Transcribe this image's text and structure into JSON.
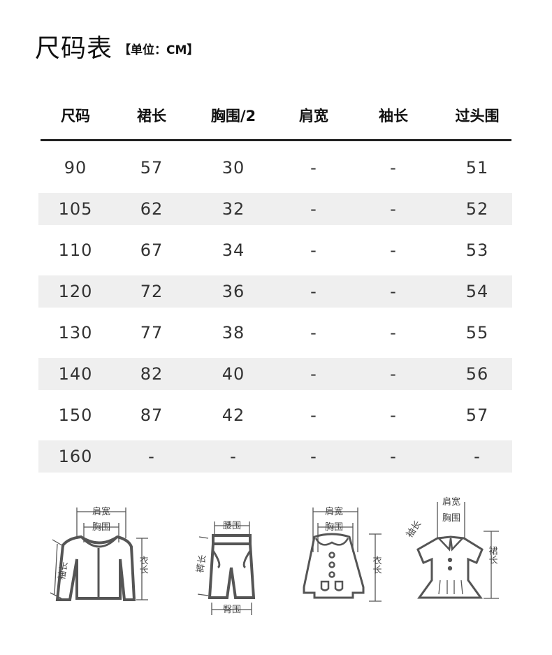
{
  "title": "尺码表",
  "unit": "【单位：CM】",
  "headers": [
    "尺码",
    "裙长",
    "胸围/2",
    "肩宽",
    "袖长",
    "过头围"
  ],
  "rows": [
    [
      "90",
      "57",
      "30",
      "-",
      "-",
      "51"
    ],
    [
      "105",
      "62",
      "32",
      "-",
      "-",
      "52"
    ],
    [
      "110",
      "67",
      "34",
      "-",
      "-",
      "53"
    ],
    [
      "120",
      "72",
      "36",
      "-",
      "-",
      "54"
    ],
    [
      "130",
      "77",
      "38",
      "-",
      "-",
      "55"
    ],
    [
      "140",
      "82",
      "40",
      "-",
      "-",
      "56"
    ],
    [
      "150",
      "87",
      "42",
      "-",
      "-",
      "57"
    ],
    [
      "160",
      "-",
      "-",
      "-",
      "-",
      "-"
    ]
  ],
  "diagrams": {
    "jacket": {
      "shoulder": "肩宽",
      "chest": "胸围",
      "sleeve": "袖长",
      "length": "衣长"
    },
    "pants": {
      "waist": "腰围",
      "length": "裤长",
      "hip": "臀围"
    },
    "coat": {
      "shoulder": "肩宽",
      "chest": "胸围",
      "length": "衣长"
    },
    "dress": {
      "shoulder": "肩宽",
      "chest": "胸围",
      "sleeve": "袖长",
      "length": "裙长"
    }
  }
}
